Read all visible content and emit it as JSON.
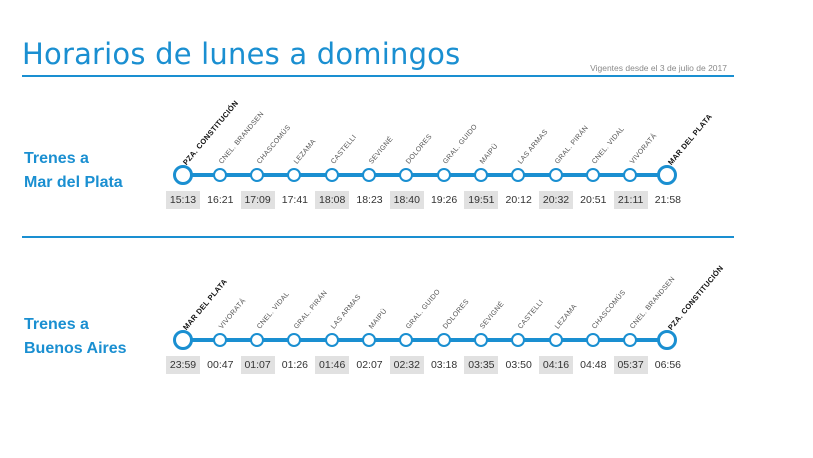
{
  "header": {
    "title": "Horarios de lunes a domingos",
    "validity": "Vigentes desde el 3 de julio de 2017"
  },
  "colors": {
    "accent": "#1a8fd1",
    "shaded_cell": "#e1e1e1"
  },
  "routes": [
    {
      "label_line1": "Trenes a",
      "label_line2": "Mar del Plata",
      "stations": [
        {
          "name": "PZA. CONSTITUCIÓN",
          "time": "15:13",
          "terminal": true
        },
        {
          "name": "CNEL. BRANDSEN",
          "time": "16:21"
        },
        {
          "name": "CHASCOMÚS",
          "time": "17:09"
        },
        {
          "name": "LEZAMA",
          "time": "17:41"
        },
        {
          "name": "CASTELLI",
          "time": "18:08"
        },
        {
          "name": "SEVIGNÉ",
          "time": "18:23"
        },
        {
          "name": "DOLORES",
          "time": "18:40"
        },
        {
          "name": "GRAL. GUIDO",
          "time": "19:26"
        },
        {
          "name": "MAIPÚ",
          "time": "19:51"
        },
        {
          "name": "LAS ARMAS",
          "time": "20:12"
        },
        {
          "name": "GRAL. PIRÁN",
          "time": "20:32"
        },
        {
          "name": "CNEL. VIDAL",
          "time": "20:51"
        },
        {
          "name": "VIVORATÁ",
          "time": "21:11"
        },
        {
          "name": "MAR DEL PLATA",
          "time": "21:58",
          "terminal": true
        }
      ]
    },
    {
      "label_line1": "Trenes a",
      "label_line2": "Buenos Aires",
      "stations": [
        {
          "name": "MAR DEL PLATA",
          "time": "23:59",
          "terminal": true
        },
        {
          "name": "VIVORATÁ",
          "time": "00:47"
        },
        {
          "name": "CNEL. VIDAL",
          "time": "01:07"
        },
        {
          "name": "GRAL. PIRÁN",
          "time": "01:26"
        },
        {
          "name": "LAS ARMAS",
          "time": "01:46"
        },
        {
          "name": "MAIPÚ",
          "time": "02:07"
        },
        {
          "name": "GRAL. GUIDO",
          "time": "02:32"
        },
        {
          "name": "DOLORES",
          "time": "03:18"
        },
        {
          "name": "SEVIGNÉ",
          "time": "03:35"
        },
        {
          "name": "CASTELLI",
          "time": "03:50"
        },
        {
          "name": "LEZAMA",
          "time": "04:16"
        },
        {
          "name": "CHASCOMÚS",
          "time": "04:48"
        },
        {
          "name": "CNEL. BRANDSEN",
          "time": "05:37"
        },
        {
          "name": "PZA. CONSTITUCIÓN",
          "time": "06:56",
          "terminal": true
        }
      ]
    }
  ]
}
